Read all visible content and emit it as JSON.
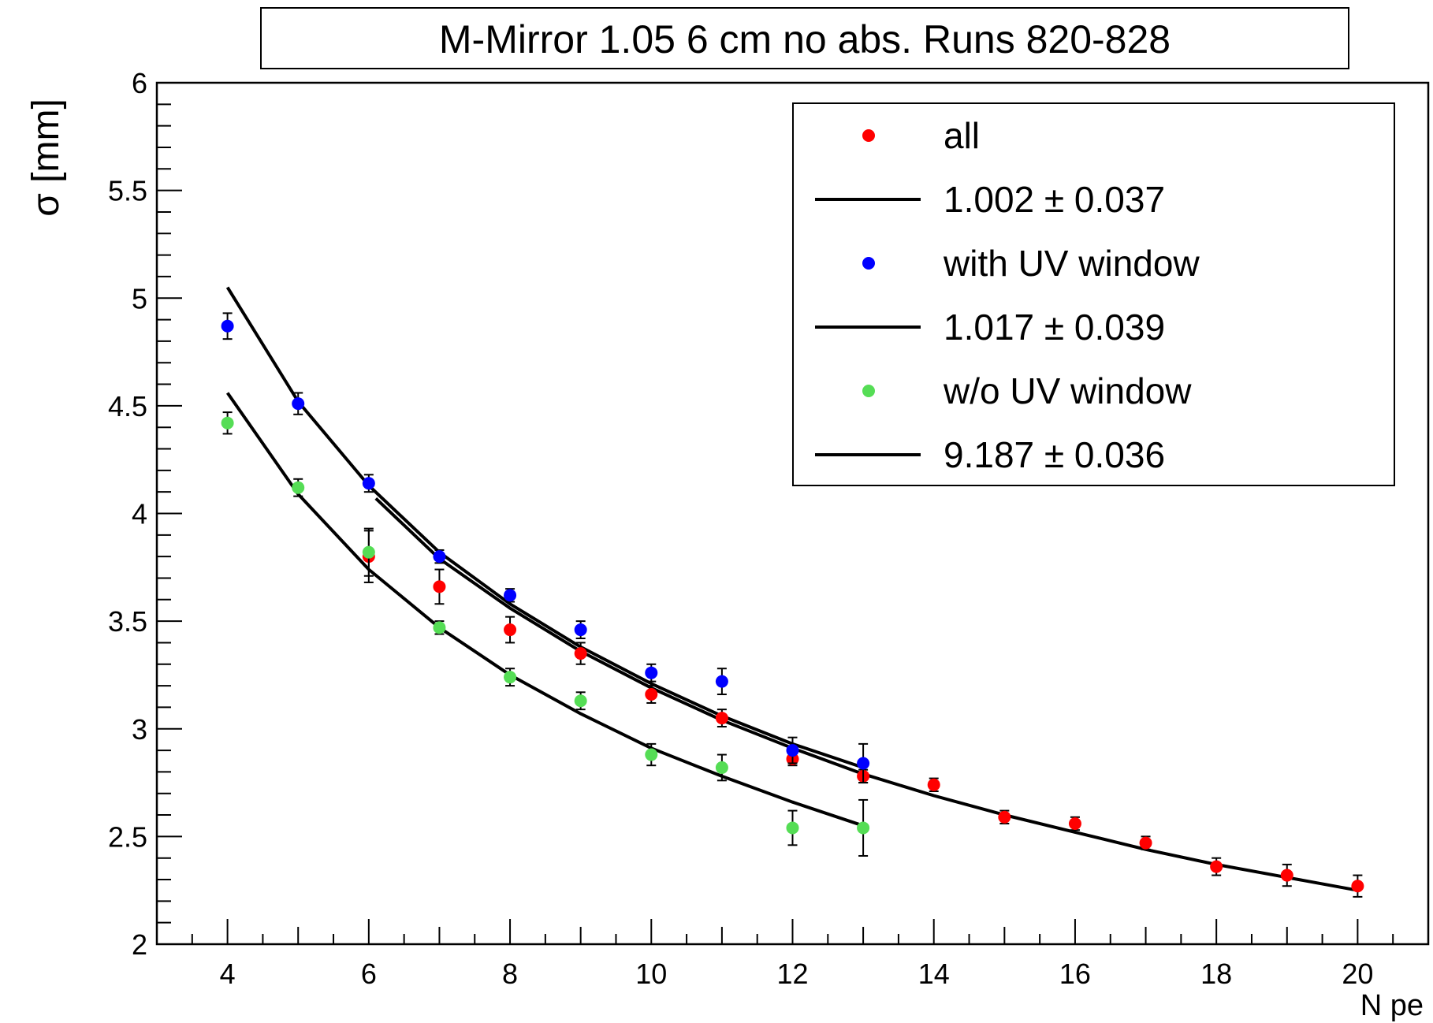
{
  "chart_data": {
    "type": "scatter",
    "title": "M-Mirror 1.05 6 cm no abs. Runs 820-828",
    "xlabel": "N pe",
    "ylabel": "σ [mm]",
    "xlim": [
      3,
      21
    ],
    "ylim": [
      2,
      6
    ],
    "x_ticks": [
      "4",
      "6",
      "8",
      "10",
      "12",
      "14",
      "16",
      "18",
      "20"
    ],
    "y_ticks": [
      "2",
      "2.5",
      "3",
      "3.5",
      "4",
      "4.5",
      "5",
      "5.5",
      "6"
    ],
    "grid": false,
    "legend_position": "top-right",
    "legend": [
      {
        "kind": "marker",
        "label": "all",
        "color": "#ff0000"
      },
      {
        "kind": "line",
        "label": "1.002 ± 0.037",
        "color": "#000000"
      },
      {
        "kind": "marker",
        "label": "with UV window",
        "color": "#0000ff"
      },
      {
        "kind": "line",
        "label": "1.017 ± 0.039",
        "color": "#000000"
      },
      {
        "kind": "marker",
        "label": "w/o UV window",
        "color": "#55dd55"
      },
      {
        "kind": "line",
        "label": "9.187 ± 0.036",
        "color": "#000000"
      }
    ],
    "series": [
      {
        "name": "all",
        "color": "#ff0000",
        "x": [
          6,
          7,
          8,
          9,
          10,
          11,
          12,
          13,
          14,
          15,
          16,
          17,
          18,
          19,
          20
        ],
        "y": [
          3.8,
          3.66,
          3.46,
          3.35,
          3.16,
          3.05,
          2.86,
          2.78,
          2.74,
          2.59,
          2.56,
          2.47,
          2.36,
          2.32,
          2.27
        ],
        "yerr": [
          0.12,
          0.08,
          0.06,
          0.05,
          0.04,
          0.04,
          0.03,
          0.03,
          0.03,
          0.03,
          0.03,
          0.03,
          0.04,
          0.05,
          0.05
        ]
      },
      {
        "name": "with UV window",
        "color": "#0000ff",
        "x": [
          4,
          5,
          6,
          7,
          8,
          9,
          10,
          11,
          12,
          13
        ],
        "y": [
          4.87,
          4.51,
          4.14,
          3.8,
          3.62,
          3.46,
          3.26,
          3.22,
          2.9,
          2.84
        ],
        "yerr": [
          0.06,
          0.05,
          0.04,
          0.03,
          0.03,
          0.04,
          0.04,
          0.06,
          0.06,
          0.09
        ]
      },
      {
        "name": "w/o UV window",
        "color": "#55dd55",
        "x": [
          4,
          5,
          6,
          7,
          8,
          9,
          10,
          11,
          12,
          13
        ],
        "y": [
          4.42,
          4.12,
          3.82,
          3.47,
          3.24,
          3.13,
          2.88,
          2.82,
          2.54,
          2.54
        ],
        "yerr": [
          0.05,
          0.04,
          0.11,
          0.03,
          0.04,
          0.04,
          0.05,
          0.06,
          0.08,
          0.13
        ]
      }
    ],
    "fits": [
      {
        "color": "#000000",
        "x_range": [
          6.1,
          20
        ],
        "points": [
          [
            6.1,
            4.07
          ],
          [
            7,
            3.79
          ],
          [
            8,
            3.56
          ],
          [
            9,
            3.36
          ],
          [
            10,
            3.19
          ],
          [
            11,
            3.04
          ],
          [
            12,
            2.91
          ],
          [
            13,
            2.79
          ],
          [
            14,
            2.69
          ],
          [
            15,
            2.6
          ],
          [
            16,
            2.52
          ],
          [
            17,
            2.44
          ],
          [
            18,
            2.37
          ],
          [
            19,
            2.31
          ],
          [
            20,
            2.25
          ]
        ]
      },
      {
        "color": "#000000",
        "x_range": [
          4,
          13
        ],
        "points": [
          [
            4,
            5.05
          ],
          [
            5,
            4.52
          ],
          [
            6,
            4.13
          ],
          [
            7,
            3.82
          ],
          [
            8,
            3.58
          ],
          [
            9,
            3.38
          ],
          [
            10,
            3.21
          ],
          [
            11,
            3.06
          ],
          [
            12,
            2.93
          ],
          [
            13,
            2.82
          ]
        ]
      },
      {
        "color": "#000000",
        "x_range": [
          4,
          13
        ],
        "points": [
          [
            4,
            4.56
          ],
          [
            5,
            4.09
          ],
          [
            6,
            3.74
          ],
          [
            7,
            3.47
          ],
          [
            8,
            3.25
          ],
          [
            9,
            3.07
          ],
          [
            10,
            2.91
          ],
          [
            11,
            2.78
          ],
          [
            12,
            2.66
          ],
          [
            13,
            2.55
          ]
        ]
      }
    ]
  }
}
